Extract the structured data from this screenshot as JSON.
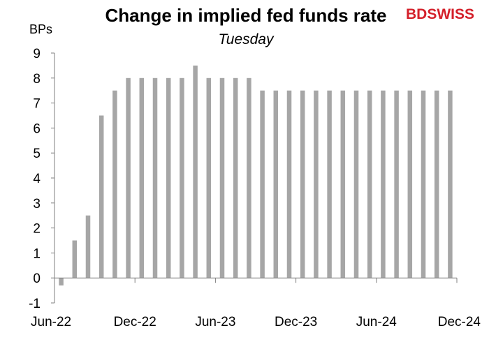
{
  "logo": {
    "part1": "BD",
    "part2": "SWISS",
    "color1": "#d4202a",
    "color2": "#d4202a"
  },
  "chart_data": {
    "type": "bar",
    "title": "Change in implied fed funds rate",
    "subtitle": "Tuesday",
    "ylabel": "BPs",
    "xlabel": "",
    "ylim": [
      -1,
      9
    ],
    "yticks": [
      -1,
      0,
      1,
      2,
      3,
      4,
      5,
      6,
      7,
      8,
      9
    ],
    "x_tick_labels": [
      "Jun-22",
      "Dec-22",
      "Jun-23",
      "Dec-23",
      "Jun-24",
      "Dec-24"
    ],
    "categories": [
      "Jun-22",
      "Jul-22",
      "Sep-22",
      "Oct-22",
      "Nov-22",
      "Dec-22",
      "Jan-23",
      "Feb-23",
      "Mar-23",
      "Apr-23",
      "May-23",
      "Jun-23",
      "Jul-23",
      "Aug-23",
      "Sep-23",
      "Oct-23",
      "Nov-23",
      "Dec-23",
      "Jan-24",
      "Feb-24",
      "Mar-24",
      "Apr-24",
      "May-24",
      "Jun-24",
      "Jul-24",
      "Aug-24",
      "Sep-24",
      "Oct-24",
      "Nov-24",
      "Dec-24"
    ],
    "values": [
      -0.3,
      1.5,
      2.5,
      6.5,
      7.5,
      8,
      8,
      8,
      8,
      8,
      8.5,
      8,
      8,
      8,
      8,
      7.5,
      7.5,
      7.5,
      7.5,
      7.5,
      7.5,
      7.5,
      7.5,
      7.5,
      7.5,
      7.5,
      7.5,
      7.5,
      7.5,
      7.5
    ],
    "bar_color": "#a6a6a6",
    "grid": false,
    "legend": "none"
  }
}
